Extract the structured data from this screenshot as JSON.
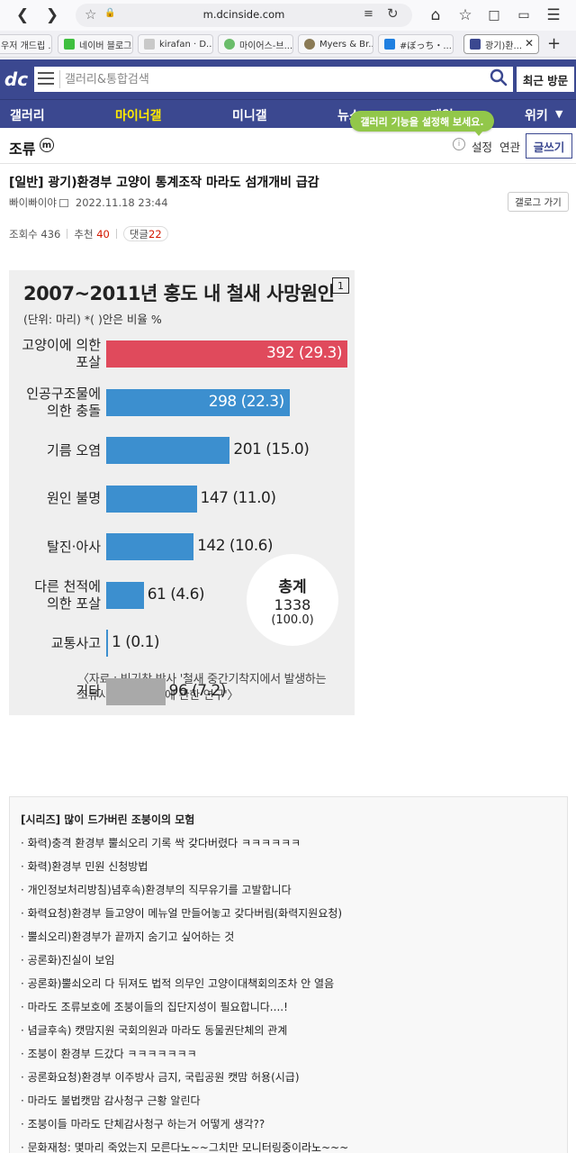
{
  "browser": {
    "url": "m.dcinside.com",
    "tabs": [
      {
        "label": "우저 개드립 ..."
      },
      {
        "label": "네이버 블로그"
      },
      {
        "label": "kirafan · D..."
      },
      {
        "label": "마이어스-브..."
      },
      {
        "label": "Myers & Br..."
      },
      {
        "label": "#ぼっち・..."
      },
      {
        "label": "광기)환..."
      }
    ]
  },
  "header": {
    "search_placeholder": "갤러리&통합검색",
    "recent_label": "최근 방문"
  },
  "nav": {
    "items": [
      "갤러리",
      "마이너갤",
      "미니갤",
      "뉴스",
      "게임",
      "위키"
    ],
    "tooltip": "갤러리 기능을 설정해 보세요."
  },
  "gallery": {
    "title": "조류",
    "badge": "m",
    "links": [
      "설정",
      "연관"
    ],
    "write_label": "글쓰기"
  },
  "post": {
    "title": "[일반] 광기)환경부 고양이 통계조작 마라도 섬개개비 급감",
    "author": "빠이빠이야",
    "date": "2022.11.18 23:44",
    "gallog_label": "갤로그 가기",
    "views_label": "조회수",
    "views": "436",
    "recommend_label": "추천",
    "recommend": "40",
    "comments_label": "댓글",
    "comments": "22"
  },
  "infographic": {
    "number": "1",
    "total_label": "총계",
    "total_value": "1338",
    "total_pct": "(100.0)",
    "source_line1": "〈자료 : 빙기창 박사 '철새 중간기착지에서 발생하는",
    "source_line2": "조류사고원인 분석에 관한 연구'〉"
  },
  "chart_data": {
    "type": "bar",
    "title": "2007~2011년 홍도 내 철새 사망원인",
    "subtitle": "(단위: 마리)  *(  )안은 비율 %",
    "categories": [
      "고양이에 의한 포살",
      "인공구조물에 의한 충돌",
      "기름 오염",
      "원인 불명",
      "탈진·아사",
      "다른 천적에 의한 포살",
      "교통사고",
      "기타"
    ],
    "values": [
      392,
      298,
      201,
      147,
      142,
      61,
      1,
      96
    ],
    "percent": [
      29.3,
      22.3,
      15.0,
      11.0,
      10.6,
      4.6,
      0.1,
      7.2
    ],
    "value_labels": [
      "392",
      "298",
      "201",
      "147",
      "142",
      "61",
      "1",
      "96"
    ],
    "percent_labels": [
      "(29.3)",
      "(22.3)",
      "(15.0)",
      "(11.0)",
      "(10.6)",
      "(4.6)",
      "(0.1)",
      "(7.2)"
    ],
    "colors": {
      "highlight": "#e04a5c",
      "main": "#3c8fcf",
      "other": "#a9a9a9"
    },
    "label_lines": [
      [
        "고양이에 의한",
        "포살"
      ],
      [
        "인공구조물에",
        "의한 충돌"
      ],
      [
        "기름 오염"
      ],
      [
        "원인 불명"
      ],
      [
        "탈진·아사"
      ],
      [
        "다른 천적에",
        "의한 포살"
      ],
      [
        "교통사고"
      ],
      [
        "기타"
      ]
    ]
  },
  "series": {
    "heading": "[시리즈] 많이 드가버린 조붕이의 모험",
    "items": [
      "· 화력)충격 환경부 뿔쇠오리 기록 싹 갖다버렸다 ㅋㅋㅋㅋㅋㅋ",
      "· 화력)환경부 민원 신청방법",
      "· 개인정보처리방침)념후속)환경부의 직무유기를 고발합니다",
      "· 화력요청)환경부 들고양이 메뉴얼 만들어놓고 갖다버림(화력지원요청)",
      "· 뿔쇠오리)환경부가 끝까지 숨기고 싶어하는 것",
      "· 공론화)진실이 보임",
      "· 공론화)뿔쇠오리 다 뒤져도 법적 의무인 고양이대책회의조차 안 열음",
      "· 마라도 조류보호에 조붕이들의 집단지성이 필요합니다....!",
      "· 념글후속) 캣맘지원 국회의원과 마라도 동물권단체의 관계",
      "· 조붕이 환경부 드갔다 ㅋㅋㅋㅋㅋㅋㅋ",
      "· 공론화요청)환경부 이주방사 금지, 국립공원 캣맘 허용(시급)",
      "· 마라도 불법캣맘 감사청구 근황 알린다",
      "· 조붕이들 마라도 단체감사청구 하는거 어떻게 생각??",
      "· 문화재청: 몇마리 죽었는지 모른다노~~그치만 모니터링중이라노~~~"
    ]
  }
}
